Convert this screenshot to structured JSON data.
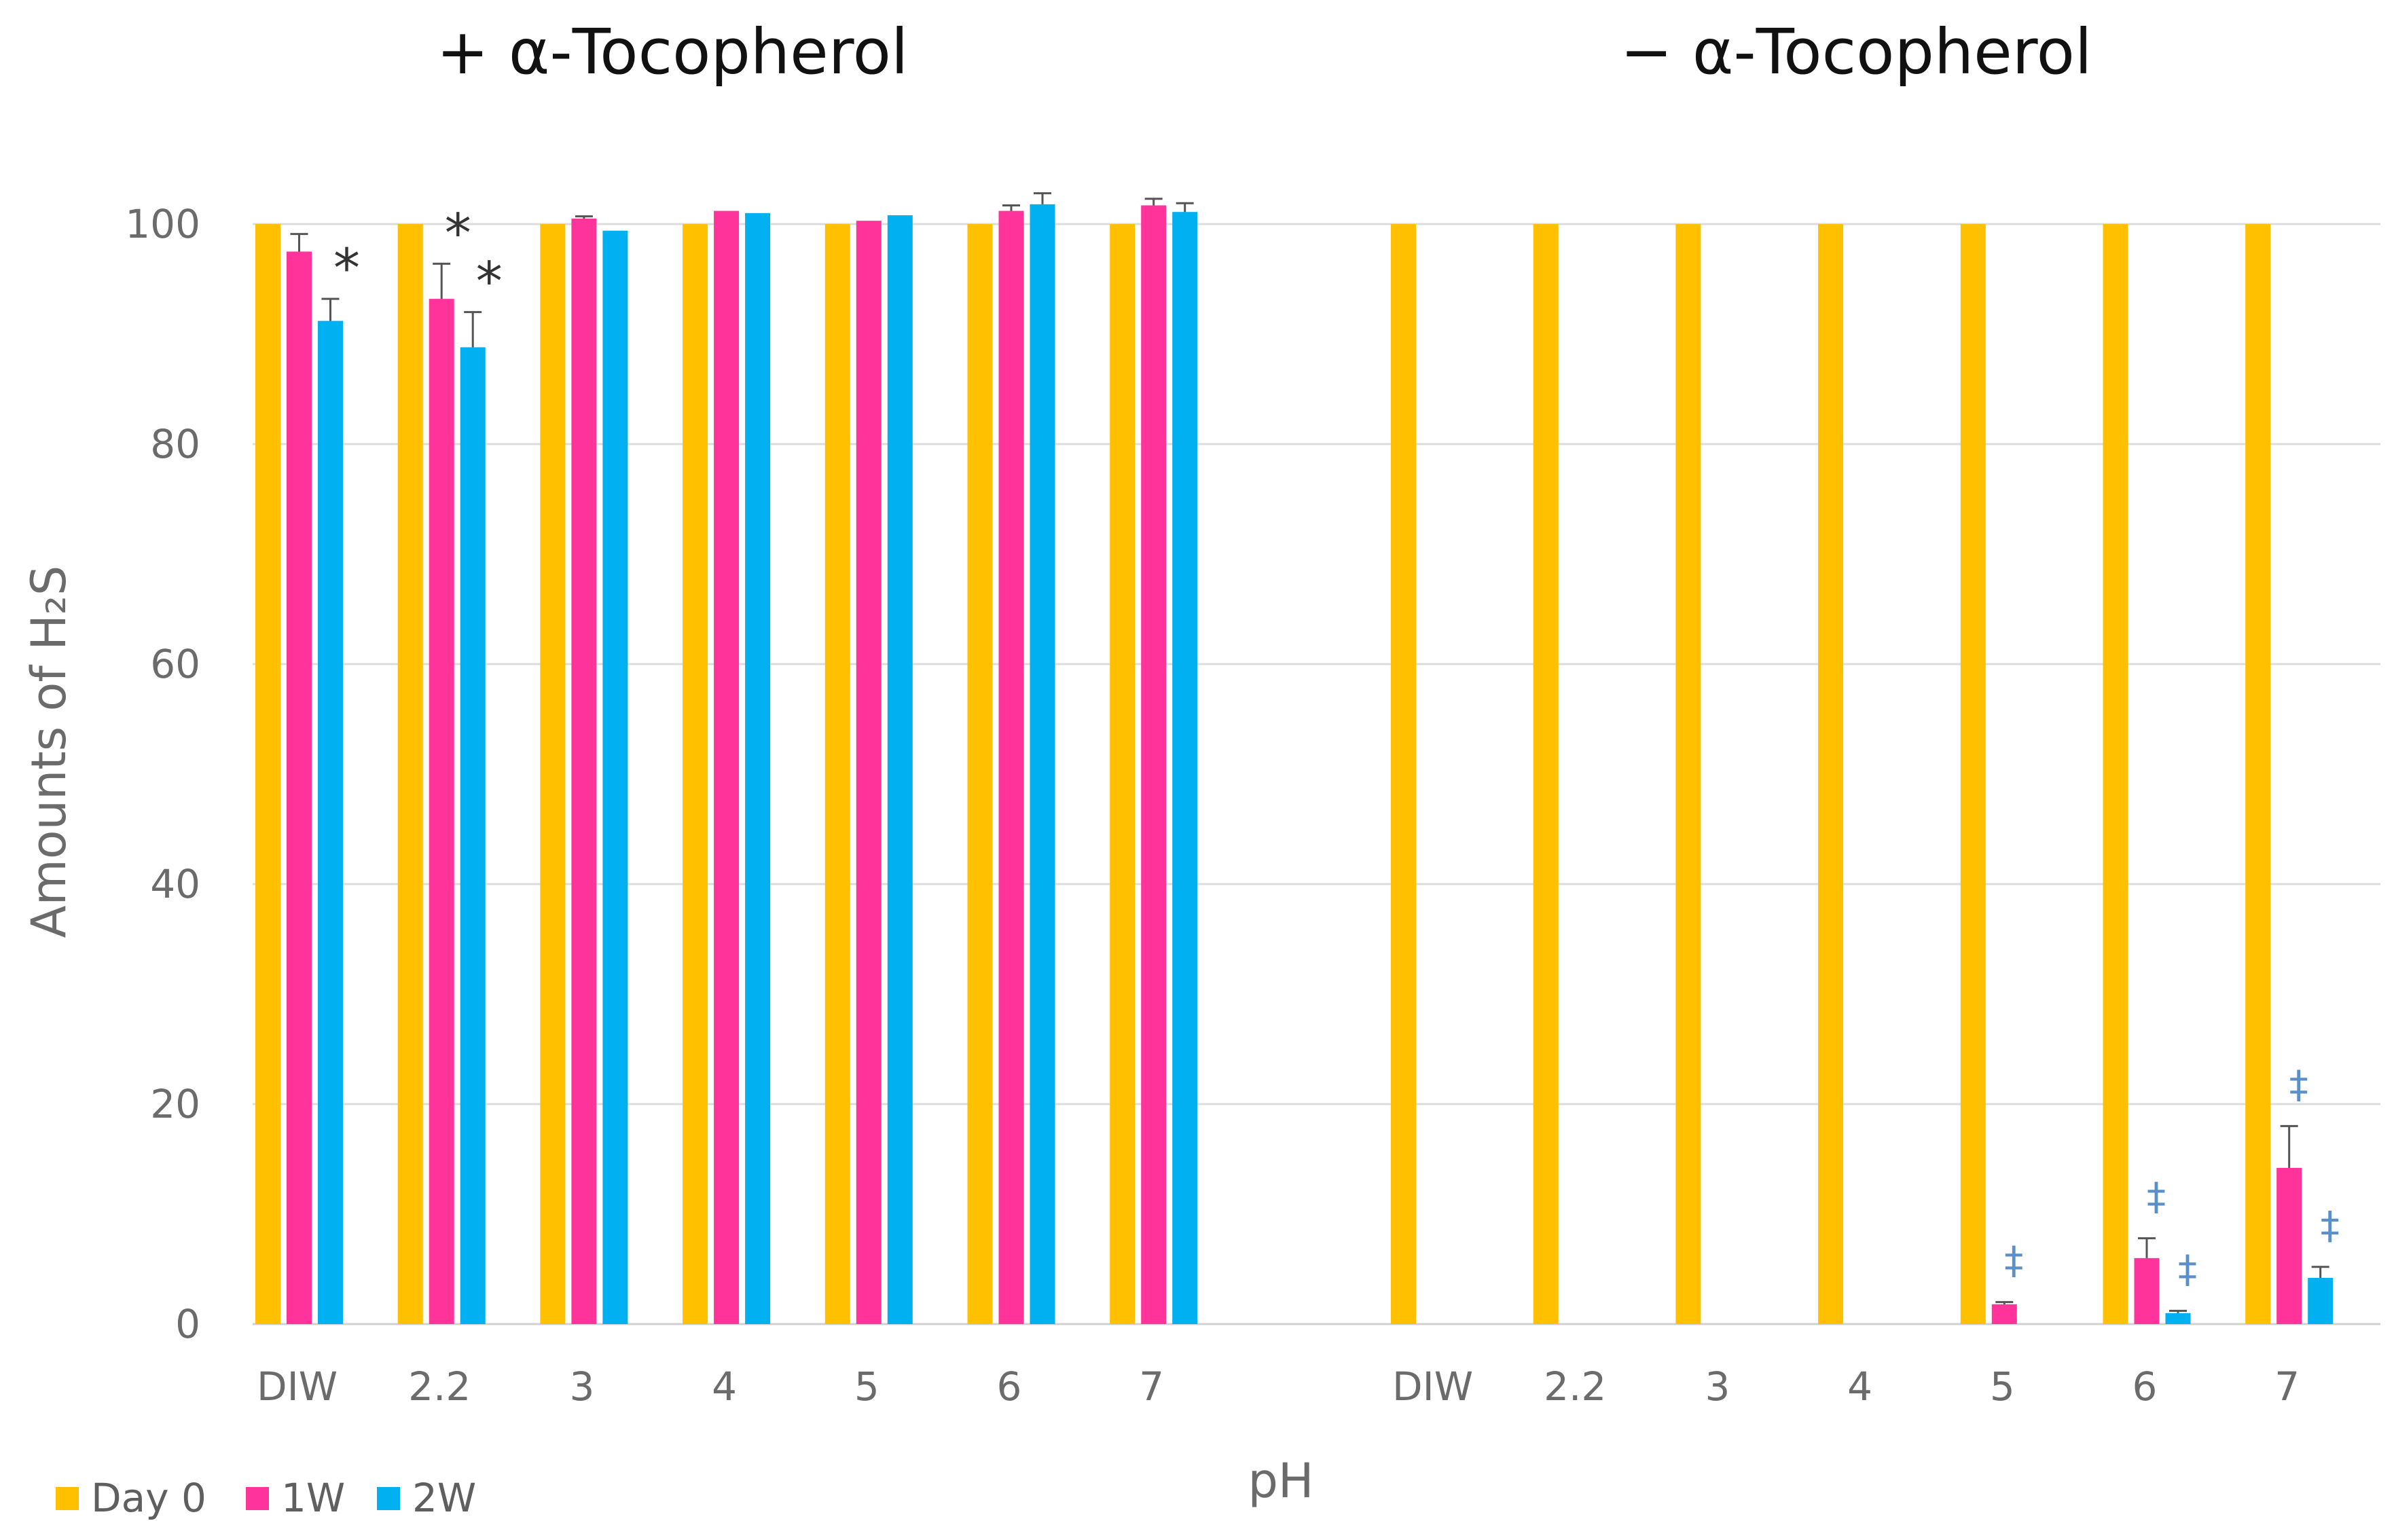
{
  "chart_data": {
    "type": "bar",
    "xlabel": "pH",
    "ylabel": "Amounts of H₂S",
    "ylim": [
      0,
      100
    ],
    "yticks": [
      0,
      20,
      40,
      60,
      80,
      100
    ],
    "grid": true,
    "legend_position": "bottom-left",
    "series": [
      {
        "name": "Day 0",
        "color": "#FFC000"
      },
      {
        "name": "1W",
        "color": "#FF3399"
      },
      {
        "name": "2W",
        "color": "#00B0F0"
      }
    ],
    "panels": [
      {
        "title": "+ α-Tocopherol",
        "categories": [
          "DIW",
          "2.2",
          "3",
          "4",
          "5",
          "6",
          "7"
        ],
        "values": [
          [
            100,
            97.5,
            91.2
          ],
          [
            100,
            93.2,
            88.8
          ],
          [
            100,
            100.5,
            99.4
          ],
          [
            100,
            101.2,
            101.0
          ],
          [
            100,
            100.3,
            100.8
          ],
          [
            100,
            101.2,
            101.8
          ],
          [
            100,
            101.7,
            101.1
          ]
        ],
        "errors": [
          [
            0,
            1.6,
            2.0
          ],
          [
            0,
            3.2,
            3.2
          ],
          [
            0,
            0.2,
            0
          ],
          [
            0,
            0,
            0
          ],
          [
            0,
            0,
            0
          ],
          [
            0,
            0.5,
            1.0
          ],
          [
            0,
            0.6,
            0.8
          ]
        ],
        "annotations": [
          {
            "category": "DIW",
            "series": "2W",
            "symbol": "*"
          },
          {
            "category": "2.2",
            "series": "1W",
            "symbol": "*"
          },
          {
            "category": "2.2",
            "series": "2W",
            "symbol": "*"
          }
        ]
      },
      {
        "title": "− α-Tocopherol",
        "categories": [
          "DIW",
          "2.2",
          "3",
          "4",
          "5",
          "6",
          "7"
        ],
        "values": [
          [
            100,
            0,
            0
          ],
          [
            100,
            0,
            0
          ],
          [
            100,
            0,
            0
          ],
          [
            100,
            0,
            0
          ],
          [
            100,
            1.8,
            0
          ],
          [
            100,
            6.0,
            1.0
          ],
          [
            100,
            14.2,
            4.2
          ]
        ],
        "errors": [
          [
            0,
            0,
            0
          ],
          [
            0,
            0,
            0
          ],
          [
            0,
            0,
            0
          ],
          [
            0,
            0,
            0
          ],
          [
            0,
            0.2,
            0
          ],
          [
            0,
            1.8,
            0.2
          ],
          [
            0,
            3.8,
            1.0
          ]
        ],
        "annotations": [
          {
            "category": "5",
            "series": "1W",
            "symbol": "‡"
          },
          {
            "category": "6",
            "series": "1W",
            "symbol": "‡"
          },
          {
            "category": "6",
            "series": "2W",
            "symbol": "‡"
          },
          {
            "category": "7",
            "series": "1W",
            "symbol": "‡"
          },
          {
            "category": "7",
            "series": "2W",
            "symbol": "‡"
          }
        ]
      }
    ]
  }
}
